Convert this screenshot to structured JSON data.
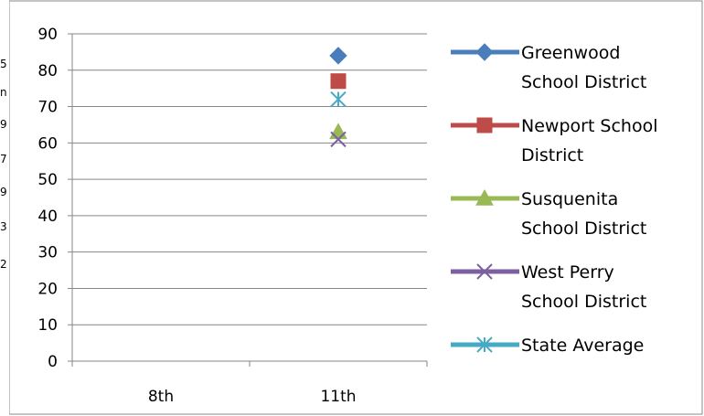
{
  "chart_data": {
    "type": "line",
    "title": "",
    "xlabel": "",
    "ylabel": "",
    "categories": [
      "8th",
      "11th"
    ],
    "ylim": [
      0,
      90
    ],
    "y_ticks": [
      "0",
      "10",
      "20",
      "30",
      "40",
      "50",
      "60",
      "70",
      "80",
      "90"
    ],
    "grid": true,
    "legend_position": "right",
    "series": [
      {
        "name": "Greenwood School District",
        "legend_lines": [
          "Greenwood",
          "School District"
        ],
        "values": [
          null,
          84
        ],
        "color": "#4a7ebb",
        "marker": "diamond"
      },
      {
        "name": "Newport School District",
        "legend_lines": [
          "Newport School",
          "District"
        ],
        "values": [
          null,
          77
        ],
        "color": "#be4b48",
        "marker": "square"
      },
      {
        "name": "Susquenita School District",
        "legend_lines": [
          "Susquenita",
          "School District"
        ],
        "values": [
          null,
          63
        ],
        "color": "#98b954",
        "marker": "triangle"
      },
      {
        "name": "West Perry School District",
        "legend_lines": [
          "West Perry",
          "School District"
        ],
        "values": [
          null,
          61
        ],
        "color": "#7d60a0",
        "marker": "x"
      },
      {
        "name": "State Average",
        "legend_lines": [
          "State Average"
        ],
        "values": [
          null,
          72
        ],
        "color": "#46aac5",
        "marker": "star"
      }
    ]
  },
  "stray_left_text": [
    "5",
    "n",
    "9",
    "7",
    "9",
    "3",
    "2"
  ]
}
